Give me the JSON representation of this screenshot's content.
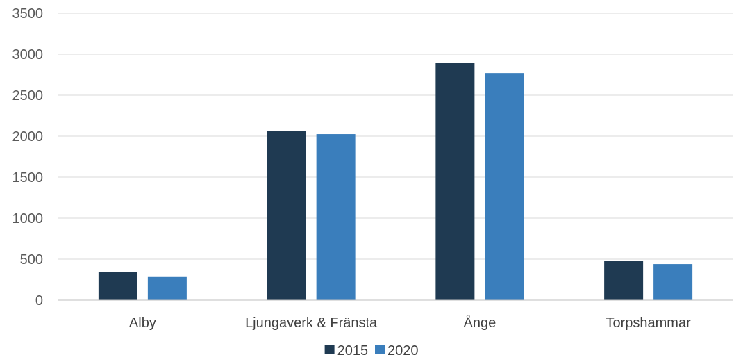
{
  "chart_data": {
    "type": "bar",
    "title": "",
    "xlabel": "",
    "ylabel": "",
    "categories": [
      "Alby",
      "Ljungaverk & Fränsta",
      "Ånge",
      "Torpshammar"
    ],
    "series": [
      {
        "name": "2015",
        "values": [
          345,
          2060,
          2890,
          475
        ],
        "color": "#1f3a52"
      },
      {
        "name": "2020",
        "values": [
          290,
          2025,
          2770,
          440
        ],
        "color": "#3a7ebc"
      }
    ],
    "ylim": [
      0,
      3500
    ],
    "yticks": [
      0,
      500,
      1000,
      1500,
      2000,
      2500,
      3000,
      3500
    ],
    "grid": true,
    "legend": "bottom-center"
  }
}
